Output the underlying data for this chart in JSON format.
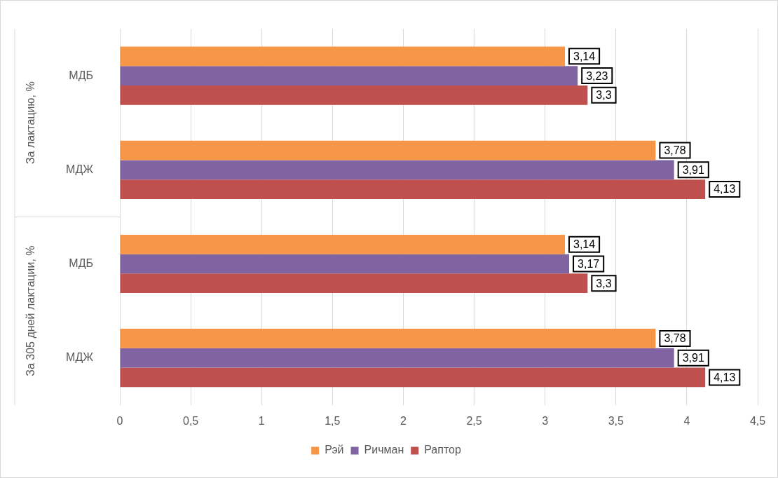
{
  "chart_data": {
    "type": "bar",
    "orientation": "horizontal",
    "categories": [
      "МДБ",
      "МДЖ",
      "МДБ",
      "МДЖ"
    ],
    "series": [
      {
        "name": "Рэй",
        "color": "#f79646",
        "values": [
          3.14,
          3.78,
          3.14,
          3.78
        ],
        "value_labels": [
          "3,14",
          "3,78",
          "3,14",
          "3,78"
        ]
      },
      {
        "name": "Ричман",
        "color": "#8064a2",
        "values": [
          3.23,
          3.91,
          3.17,
          3.91
        ],
        "value_labels": [
          "3,23",
          "3,91",
          "3,17",
          "3,91"
        ]
      },
      {
        "name": "Раптор",
        "color": "#c0504d",
        "values": [
          3.3,
          4.13,
          3.3,
          4.13
        ],
        "value_labels": [
          "3,3",
          "4,13",
          "3,3",
          "4,13"
        ]
      }
    ],
    "annotations": [
      "За лактацию, %",
      "За 305 дней лактации, %"
    ],
    "xlim": [
      0,
      4.5
    ],
    "xticks": [
      0,
      {
        "value": 0.5,
        "label": "0,5"
      },
      1,
      {
        "value": 1.5,
        "label": "1,5"
      },
      2,
      {
        "value": 2.5,
        "label": "2,5"
      },
      3,
      {
        "value": 3.5,
        "label": "3,5"
      },
      4,
      {
        "value": 4.5,
        "label": "4,5"
      }
    ],
    "grid": "x",
    "legend": "bottom"
  }
}
